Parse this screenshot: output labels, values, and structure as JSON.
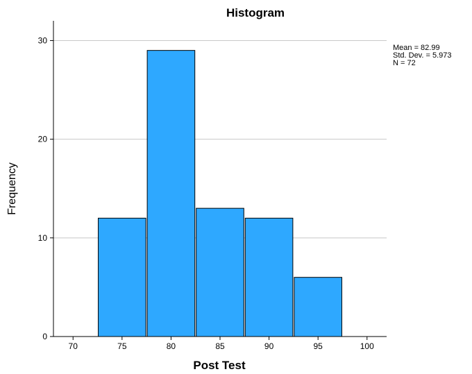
{
  "chart_data": {
    "type": "histogram",
    "title": "Histogram",
    "xlabel": "Post Test",
    "ylabel": "Frequency",
    "bins": [
      {
        "from": 72.5,
        "to": 77.5,
        "frequency": 12
      },
      {
        "from": 77.5,
        "to": 82.5,
        "frequency": 29
      },
      {
        "from": 82.5,
        "to": 87.5,
        "frequency": 13
      },
      {
        "from": 87.5,
        "to": 92.5,
        "frequency": 12
      },
      {
        "from": 92.5,
        "to": 97.5,
        "frequency": 6
      }
    ],
    "x_ticks": [
      "70",
      "75",
      "80",
      "85",
      "90",
      "95",
      "100"
    ],
    "y_ticks": [
      "0",
      "10",
      "20",
      "30"
    ],
    "xlim": [
      68,
      102
    ],
    "ylim": [
      0,
      32
    ],
    "grid": "horizontal",
    "legend_position": "top-right",
    "bar_color": "#2ea8ff",
    "bar_edge_color": "#000000",
    "grid_color": "#c8c8c8",
    "stats": {
      "mean": "Mean = 82.99",
      "std_dev": "Std. Dev. = 5.973",
      "n": "N = 72"
    }
  }
}
